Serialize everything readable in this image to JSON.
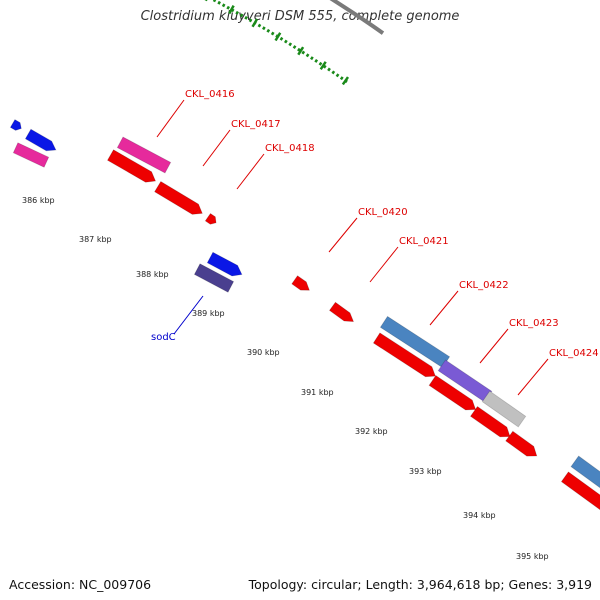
{
  "title": "Clostridium kluyveri DSM 555, complete genome",
  "accession_text": "Accession: NC_009706",
  "topology_text": "Topology: circular; Length: 3,964,618 bp; Genes: 3,919",
  "kbp_ticks": [
    "386 kbp",
    "387 kbp",
    "388 kbp",
    "389 kbp",
    "390 kbp",
    "391 kbp",
    "392 kbp",
    "393 kbp",
    "394 kbp",
    "395 kbp"
  ],
  "gene_labels": [
    {
      "text": "CKL_0416",
      "color": "#dd0000"
    },
    {
      "text": "CKL_0417",
      "color": "#dd0000"
    },
    {
      "text": "CKL_0418",
      "color": "#dd0000"
    },
    {
      "text": "CKL_0420",
      "color": "#dd0000"
    },
    {
      "text": "CKL_0421",
      "color": "#dd0000"
    },
    {
      "text": "CKL_0422",
      "color": "#dd0000"
    },
    {
      "text": "CKL_0423",
      "color": "#dd0000"
    },
    {
      "text": "CKL_0424",
      "color": "#dd0000"
    },
    {
      "text": "sodC",
      "color": "#0000cc"
    }
  ],
  "colors": {
    "backbone": "#7a7a7a",
    "tick_dots": "#1a8a1a",
    "cds_forward": "#ee0000",
    "rna_magenta": "#e62a9c",
    "blue_small": "#0a17e6",
    "steelblue": "#4a84c0",
    "slate_purple": "#4a3f8f",
    "violet": "#7a5ad4",
    "grey_feature": "#c0c0c0"
  }
}
